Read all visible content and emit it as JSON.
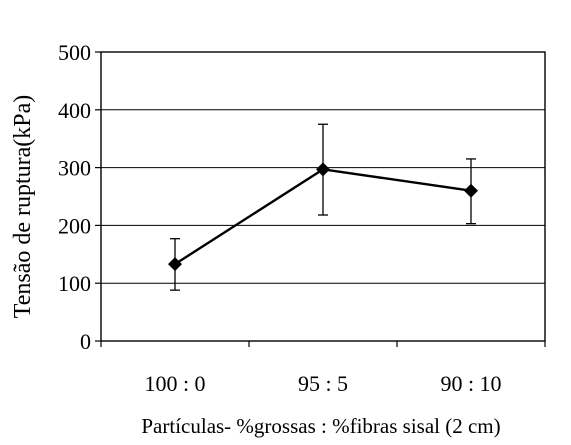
{
  "chart_data": {
    "type": "line",
    "title": "",
    "xlabel": "Partículas- %grossas : %fibras sisal (2 cm)",
    "ylabel": "Tensão de ruptura(kPa)",
    "categories": [
      "100 : 0",
      "95 : 5",
      "90 : 10"
    ],
    "ylim": [
      0,
      500
    ],
    "yticks": [
      0,
      100,
      200,
      300,
      400,
      500
    ],
    "grid": "horizontal",
    "legend": "none",
    "series": [
      {
        "values": [
          133,
          297,
          260
        ],
        "error_low": [
          88,
          218,
          203
        ],
        "error_high": [
          177,
          375,
          315
        ],
        "marker": "diamond",
        "color": "#000000"
      }
    ]
  }
}
